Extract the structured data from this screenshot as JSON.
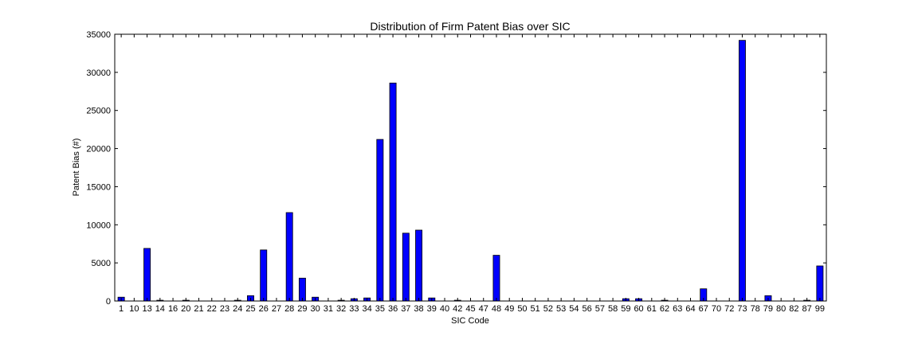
{
  "chart_data": {
    "type": "bar",
    "title": "Distribution of Firm Patent Bias over SIC",
    "xlabel": "SIC Code",
    "ylabel": "Patent Bias (#)",
    "ylim": [
      0,
      35000
    ],
    "yticks": [
      0,
      5000,
      10000,
      15000,
      20000,
      25000,
      30000,
      35000
    ],
    "bar_color": "#0000ff",
    "grid": false,
    "categories": [
      "1",
      "10",
      "13",
      "14",
      "16",
      "20",
      "21",
      "22",
      "23",
      "24",
      "25",
      "26",
      "27",
      "28",
      "29",
      "30",
      "31",
      "32",
      "33",
      "34",
      "35",
      "36",
      "37",
      "38",
      "39",
      "40",
      "42",
      "45",
      "47",
      "48",
      "49",
      "50",
      "51",
      "52",
      "53",
      "54",
      "56",
      "57",
      "58",
      "59",
      "60",
      "61",
      "62",
      "63",
      "64",
      "67",
      "70",
      "72",
      "73",
      "78",
      "79",
      "80",
      "82",
      "87",
      "99"
    ],
    "values": [
      500,
      0,
      6900,
      100,
      0,
      100,
      0,
      0,
      0,
      100,
      700,
      6700,
      0,
      11600,
      3000,
      500,
      0,
      100,
      300,
      400,
      21200,
      28600,
      8900,
      9300,
      400,
      0,
      100,
      0,
      0,
      6000,
      0,
      0,
      0,
      0,
      0,
      0,
      0,
      0,
      0,
      300,
      300,
      0,
      100,
      0,
      0,
      1600,
      0,
      0,
      34200,
      0,
      700,
      0,
      0,
      100,
      4600
    ]
  }
}
